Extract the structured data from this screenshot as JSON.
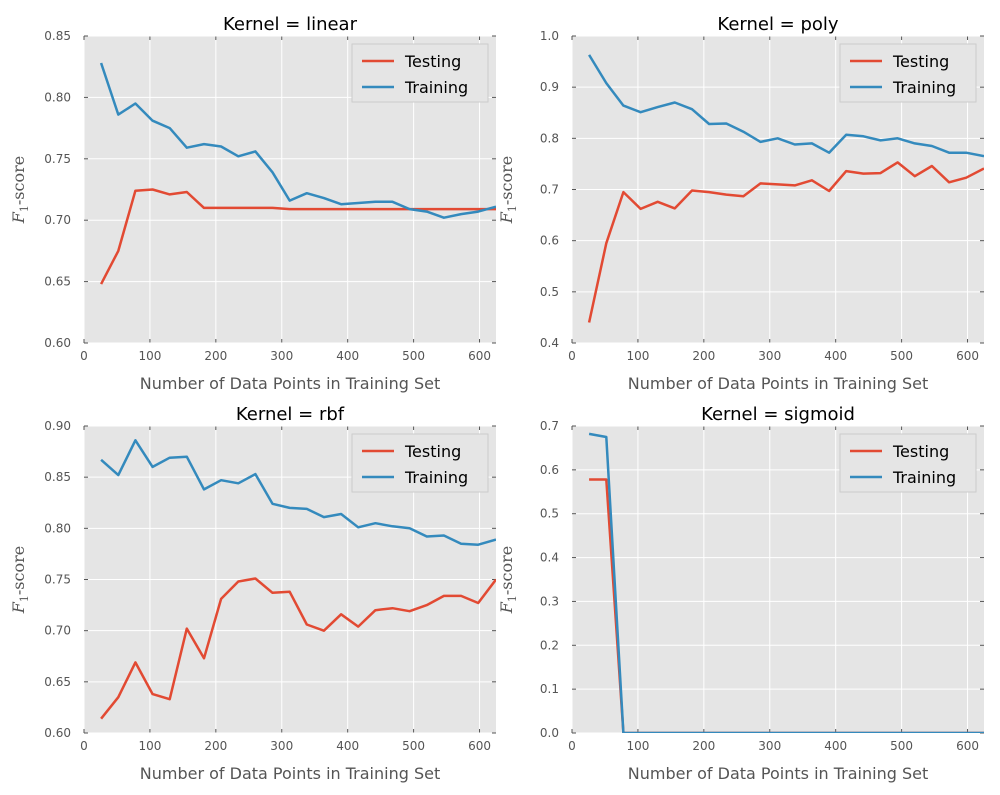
{
  "chart_data": [
    {
      "type": "line",
      "title": "Kernel = linear",
      "xlabel": "Number of Data Points in Training Set",
      "ylabel": "F1-score",
      "xlim": [
        0,
        625
      ],
      "ylim": [
        0.6,
        0.85
      ],
      "xticks": [
        0,
        100,
        200,
        300,
        400,
        500,
        600
      ],
      "yticks": [
        0.6,
        0.65,
        0.7,
        0.75,
        0.8,
        0.85
      ],
      "ytick_labels": [
        "0.60",
        "0.65",
        "0.70",
        "0.75",
        "0.80",
        "0.85"
      ],
      "legend": "top-right",
      "grid": true,
      "x": [
        26,
        52,
        78,
        104,
        130,
        156,
        182,
        208,
        234,
        260,
        286,
        312,
        338,
        364,
        390,
        416,
        442,
        468,
        494,
        520,
        546,
        572,
        598,
        625
      ],
      "series": [
        {
          "name": "Testing",
          "color": "#e24a33",
          "values": [
            0.648,
            0.675,
            0.724,
            0.725,
            0.721,
            0.723,
            0.71,
            0.71,
            0.71,
            0.71,
            0.71,
            0.709,
            0.709,
            0.709,
            0.709,
            0.709,
            0.709,
            0.709,
            0.709,
            0.709,
            0.709,
            0.709,
            0.709,
            0.709
          ]
        },
        {
          "name": "Training",
          "color": "#348abd",
          "values": [
            0.828,
            0.786,
            0.795,
            0.781,
            0.775,
            0.759,
            0.762,
            0.76,
            0.752,
            0.756,
            0.739,
            0.716,
            0.722,
            0.718,
            0.713,
            0.714,
            0.715,
            0.715,
            0.709,
            0.707,
            0.702,
            0.705,
            0.707,
            0.711
          ]
        }
      ]
    },
    {
      "type": "line",
      "title": "Kernel = poly",
      "xlabel": "Number of Data Points in Training Set",
      "ylabel": "F1-score",
      "xlim": [
        0,
        625
      ],
      "ylim": [
        0.4,
        1.0
      ],
      "xticks": [
        0,
        100,
        200,
        300,
        400,
        500,
        600
      ],
      "yticks": [
        0.4,
        0.5,
        0.6,
        0.7,
        0.8,
        0.9,
        1.0
      ],
      "ytick_labels": [
        "0.4",
        "0.5",
        "0.6",
        "0.7",
        "0.8",
        "0.9",
        "1.0"
      ],
      "legend": "top-right",
      "grid": true,
      "x": [
        26,
        52,
        78,
        104,
        130,
        156,
        182,
        208,
        234,
        260,
        286,
        312,
        338,
        364,
        390,
        416,
        442,
        468,
        494,
        520,
        546,
        572,
        598,
        625
      ],
      "series": [
        {
          "name": "Testing",
          "color": "#e24a33",
          "values": [
            0.44,
            0.595,
            0.695,
            0.662,
            0.676,
            0.663,
            0.698,
            0.695,
            0.69,
            0.687,
            0.712,
            0.71,
            0.708,
            0.718,
            0.697,
            0.736,
            0.731,
            0.732,
            0.753,
            0.726,
            0.746,
            0.714,
            0.723,
            0.741
          ]
        },
        {
          "name": "Training",
          "color": "#348abd",
          "values": [
            0.963,
            0.908,
            0.864,
            0.851,
            0.861,
            0.87,
            0.857,
            0.828,
            0.829,
            0.813,
            0.793,
            0.8,
            0.788,
            0.79,
            0.772,
            0.807,
            0.804,
            0.796,
            0.8,
            0.79,
            0.785,
            0.772,
            0.772,
            0.765
          ]
        }
      ]
    },
    {
      "type": "line",
      "title": "Kernel = rbf",
      "xlabel": "Number of Data Points in Training Set",
      "ylabel": "F1-score",
      "xlim": [
        0,
        625
      ],
      "ylim": [
        0.6,
        0.9
      ],
      "xticks": [
        0,
        100,
        200,
        300,
        400,
        500,
        600
      ],
      "yticks": [
        0.6,
        0.65,
        0.7,
        0.75,
        0.8,
        0.85,
        0.9
      ],
      "ytick_labels": [
        "0.60",
        "0.65",
        "0.70",
        "0.75",
        "0.80",
        "0.85",
        "0.90"
      ],
      "legend": "top-right",
      "grid": true,
      "x": [
        26,
        52,
        78,
        104,
        130,
        156,
        182,
        208,
        234,
        260,
        286,
        312,
        338,
        364,
        390,
        416,
        442,
        468,
        494,
        520,
        546,
        572,
        598,
        625
      ],
      "series": [
        {
          "name": "Testing",
          "color": "#e24a33",
          "values": [
            0.614,
            0.635,
            0.669,
            0.638,
            0.633,
            0.702,
            0.673,
            0.731,
            0.748,
            0.751,
            0.737,
            0.738,
            0.706,
            0.7,
            0.716,
            0.704,
            0.72,
            0.722,
            0.719,
            0.725,
            0.734,
            0.734,
            0.727,
            0.75
          ]
        },
        {
          "name": "Training",
          "color": "#348abd",
          "values": [
            0.867,
            0.852,
            0.886,
            0.86,
            0.869,
            0.87,
            0.838,
            0.847,
            0.844,
            0.853,
            0.824,
            0.82,
            0.819,
            0.811,
            0.814,
            0.801,
            0.805,
            0.802,
            0.8,
            0.792,
            0.793,
            0.785,
            0.784,
            0.789
          ]
        }
      ]
    },
    {
      "type": "line",
      "title": "Kernel = sigmoid",
      "xlabel": "Number of Data Points in Training Set",
      "ylabel": "F1-score",
      "xlim": [
        0,
        625
      ],
      "ylim": [
        0.0,
        0.7
      ],
      "xticks": [
        0,
        100,
        200,
        300,
        400,
        500,
        600
      ],
      "yticks": [
        0.0,
        0.1,
        0.2,
        0.3,
        0.4,
        0.5,
        0.6,
        0.7
      ],
      "ytick_labels": [
        "0.0",
        "0.1",
        "0.2",
        "0.3",
        "0.4",
        "0.5",
        "0.6",
        "0.7"
      ],
      "legend": "top-right",
      "grid": true,
      "x": [
        26,
        52,
        78,
        104,
        130,
        156,
        182,
        208,
        234,
        260,
        286,
        312,
        338,
        364,
        390,
        416,
        442,
        468,
        494,
        520,
        546,
        572,
        598,
        625
      ],
      "series": [
        {
          "name": "Testing",
          "color": "#e24a33",
          "values": [
            0.578,
            0.578,
            0.0,
            0.0,
            0.0,
            0.0,
            0.0,
            0.0,
            0.0,
            0.0,
            0.0,
            0.0,
            0.0,
            0.0,
            0.0,
            0.0,
            0.0,
            0.0,
            0.0,
            0.0,
            0.0,
            0.0,
            0.0,
            0.0
          ]
        },
        {
          "name": "Training",
          "color": "#348abd",
          "values": [
            0.682,
            0.675,
            0.0,
            0.0,
            0.0,
            0.0,
            0.0,
            0.0,
            0.0,
            0.0,
            0.0,
            0.0,
            0.0,
            0.0,
            0.0,
            0.0,
            0.0,
            0.0,
            0.0,
            0.0,
            0.0,
            0.0,
            0.0,
            0.0
          ]
        }
      ]
    }
  ]
}
